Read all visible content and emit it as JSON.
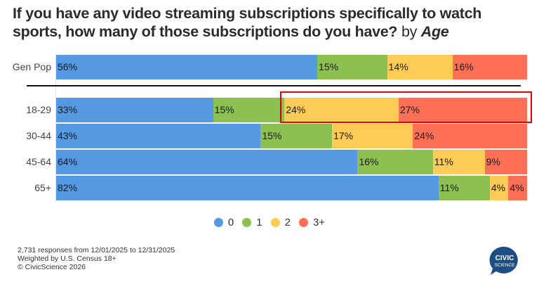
{
  "title": {
    "main": "If you have any video streaming subscriptions specifically to watch sports, how many of those subscriptions do you have?",
    "by": "by",
    "dimension": "Age"
  },
  "colors": {
    "0": "#5599e3",
    "1": "#8cc152",
    "2": "#fecb56",
    "3+": "#fe7055",
    "highlight": "#e00000"
  },
  "chart_data": {
    "type": "bar",
    "orientation": "horizontal",
    "stacked": true,
    "title": "If you have any video streaming subscriptions specifically to watch sports, how many of those subscriptions do you have? by Age",
    "categories": [
      "Gen Pop",
      "18-29",
      "30-44",
      "45-64",
      "65+"
    ],
    "series": [
      {
        "name": "0",
        "values": [
          56,
          33,
          43,
          64,
          82
        ]
      },
      {
        "name": "1",
        "values": [
          15,
          15,
          15,
          16,
          11
        ]
      },
      {
        "name": "2",
        "values": [
          14,
          24,
          17,
          11,
          4
        ]
      },
      {
        "name": "3+",
        "values": [
          16,
          27,
          24,
          9,
          4
        ]
      }
    ],
    "labels": [
      [
        "56%",
        "15%",
        "14%",
        "16%"
      ],
      [
        "33%",
        "15%",
        "24%",
        "27%"
      ],
      [
        "43%",
        "15%",
        "17%",
        "24%"
      ],
      [
        "64%",
        "16%",
        "11%",
        "9%"
      ],
      [
        "82%",
        "11%",
        "4%",
        "4%"
      ]
    ],
    "xlabel": "",
    "ylabel": "",
    "xlim": [
      0,
      100
    ],
    "legend_position": "bottom",
    "grid": false,
    "annotations": [
      "Red box highlighting 18-29 values for 2 (24%) and 3+ (27%)"
    ]
  },
  "rows": [
    {
      "label": "Gen Pop",
      "segs": [
        "56%",
        "15%",
        "14%",
        "16%"
      ]
    },
    {
      "label": "18-29",
      "segs": [
        "33%",
        "15%",
        "24%",
        "27%"
      ]
    },
    {
      "label": "30-44",
      "segs": [
        "43%",
        "15%",
        "17%",
        "24%"
      ]
    },
    {
      "label": "45-64",
      "segs": [
        "64%",
        "16%",
        "11%",
        "9%"
      ]
    },
    {
      "label": "65+",
      "segs": [
        "82%",
        "11%",
        "4%",
        "4%"
      ]
    }
  ],
  "legend": [
    {
      "label": "0"
    },
    {
      "label": "1"
    },
    {
      "label": "2"
    },
    {
      "label": "3+"
    }
  ],
  "footer": {
    "line1": "2,731 responses from 12/01/2025 to 12/31/2025",
    "line2": "Weighted by U.S. Census 18+",
    "line3": "© CivicScience 2026"
  },
  "logo": {
    "line1": "CIVIC",
    "line2": "SCIENCE"
  }
}
